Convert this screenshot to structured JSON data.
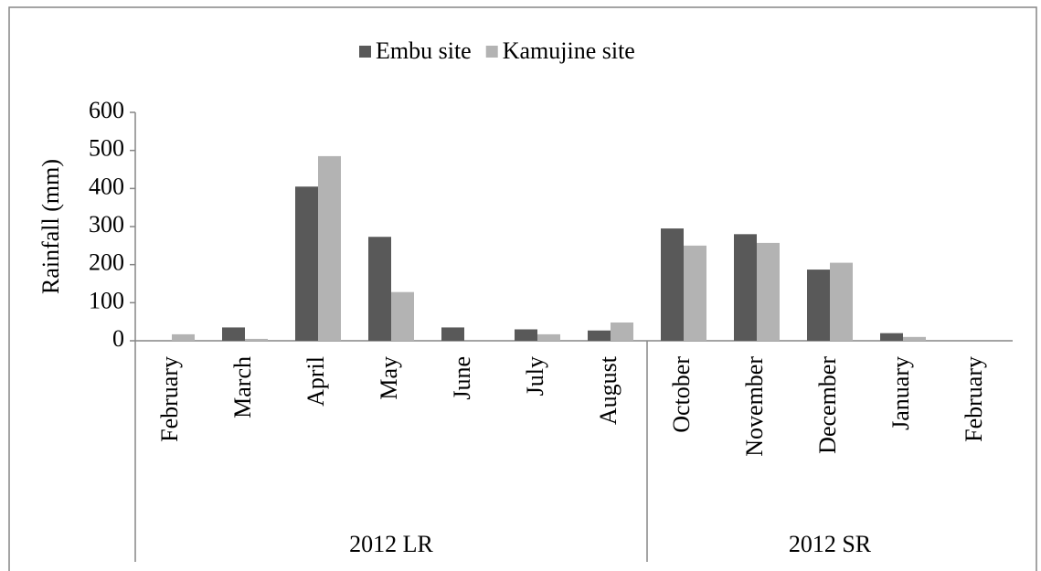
{
  "chart_data": {
    "type": "bar",
    "y_label": "Rainfall  (mm)",
    "categories": [
      "February",
      "March",
      "April",
      "May",
      "June",
      "July",
      "August",
      "October",
      "November",
      "December",
      "January",
      "February"
    ],
    "category_groups": [
      "2012 LR",
      "2012 LR",
      "2012 LR",
      "2012 LR",
      "2012 LR",
      "2012 LR",
      "2012 LR",
      "2012 SR",
      "2012 SR",
      "2012 SR",
      "2012 SR",
      "2012 SR"
    ],
    "series": [
      {
        "name": "Embu site",
        "color": "#595959",
        "values": [
          0,
          35,
          405,
          273,
          35,
          30,
          27,
          295,
          280,
          187,
          20,
          0
        ]
      },
      {
        "name": "Kamujine site",
        "color": "#b3b3b3",
        "values": [
          17,
          5,
          485,
          128,
          0,
          17,
          48,
          250,
          257,
          205,
          10,
          0
        ]
      }
    ],
    "ylim": [
      0,
      600
    ],
    "yticks": [
      0,
      100,
      200,
      300,
      400,
      500,
      600
    ],
    "legend": "top",
    "grid": false
  }
}
